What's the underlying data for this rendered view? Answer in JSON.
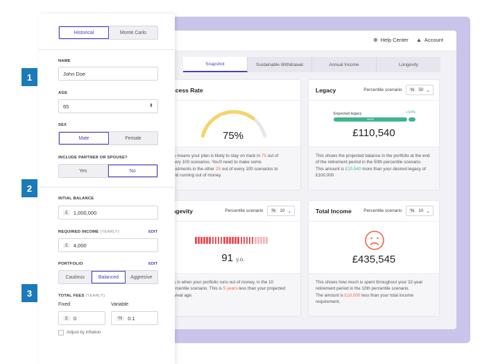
{
  "header": {
    "help_center": "Help Center",
    "account": "Account"
  },
  "tabs": [
    {
      "label": "Snapshot",
      "active": true
    },
    {
      "label": "Sustainable Withdrawal",
      "active": false
    },
    {
      "label": "Annual Income",
      "active": false
    },
    {
      "label": "Longevity",
      "active": false
    }
  ],
  "cards": {
    "success": {
      "title": "uccess Rate",
      "value": "75%",
      "gauge_fraction": 0.75,
      "foot": [
        "is means your plan is likely to stay on track in ",
        "75",
        " out of",
        "very 100 scenarios. You'll need to make some",
        "justments in the other ",
        "25",
        " out of every 100 scenarios to",
        "oid running out of money."
      ]
    },
    "legacy": {
      "title": "Legacy",
      "pct_label": "Percentile scenario",
      "pct_symbol": "%",
      "pct_value": "50",
      "expected_label": "Expected legacy",
      "plus_label": "+10%",
      "bar_label": "100%",
      "value": "£110,540",
      "foot_1": "This shows the projected balance in the portfolio at the end",
      "foot_2": "of the retirement period in the 50th percentile scenario.",
      "foot_3a": "This amount is ",
      "foot_3b": "£10,540",
      "foot_3c": " more than your desired legacy of",
      "foot_4": "£100,000."
    },
    "longevity": {
      "title": "ongevity",
      "pct_label": "Percentile scenario",
      "pct_symbol": "%",
      "pct_value": "10",
      "value": "91",
      "unit": "y.o.",
      "foot_1": "is is when your portfolio runs out of money, in the 10",
      "foot_2a": "ercentile scenario. This is ",
      "foot_2b": "5 years",
      "foot_2c": " less than your projected",
      "foot_3": "rvival age."
    },
    "income": {
      "title": "Total Income",
      "pct_label": "Percentile scenario",
      "pct_symbol": "%",
      "pct_value": "10",
      "value": "£435,545",
      "foot_1": "This shows how much is spent throughout your 32-year",
      "foot_2": "retirement period in the 10th percentile scenario.",
      "foot_3a": "The amount is ",
      "foot_3b": "£10,000",
      "foot_3c": " less than your total income",
      "foot_4": "requirement."
    }
  },
  "sidebar": {
    "mode_tabs": [
      "Historical",
      "Monte Carlo"
    ],
    "name_label": "NAME",
    "name_value": "John Doe",
    "age_label": "AGE",
    "age_value": "65",
    "sex_label": "SEX",
    "sex_options": [
      "Male",
      "Female"
    ],
    "partner_label": "INCLUDE PARTNER OR SPOUSE?",
    "partner_options": [
      "Yes",
      "No"
    ],
    "initial_balance_label": "INTIAL BALANCE",
    "currency_symbol": "£",
    "initial_balance_value": "1,000,000",
    "required_income_label": "REQUIRED INCOME",
    "required_income_sub": "(YEARLY)",
    "edit_label": "EDIT",
    "required_income_value": "4,000",
    "portfolio_label": "PORTFOLIO",
    "portfolio_options": [
      "Cautious",
      "Balanced",
      "Aggresive"
    ],
    "fees_label": "TOTAL FEES",
    "fees_sub": "(YEARLY)",
    "fixed_label": "Fixed",
    "variable_label": "Variable",
    "fixed_value": "0",
    "percent_symbol": "%",
    "variable_value": "0.1",
    "adjust_label": "Adjust by inflation"
  },
  "steps": [
    "1",
    "2",
    "3"
  ],
  "colors": {
    "accent": "#4a3fc2",
    "step": "#1c7ab8",
    "gauge": "#f7d36a",
    "legacy_bar": "#3fb58c",
    "longevity_bar": "#e8525a",
    "highlight": "#f0643c",
    "sad_face": "#f0643c"
  }
}
